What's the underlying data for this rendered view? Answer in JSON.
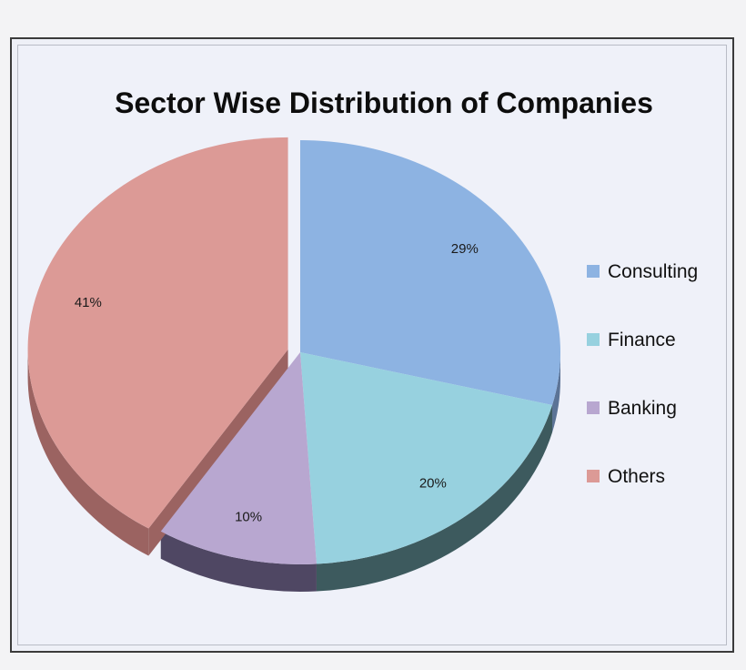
{
  "chart_data": {
    "type": "pie",
    "title": "Sector Wise Distribution of Companies",
    "legend_position": "right",
    "three_d": true,
    "slices": [
      {
        "label": "Consulting",
        "value": 29,
        "data_label": "29%",
        "color": "#8db3e2",
        "side_color": "#5b7396"
      },
      {
        "label": "Finance",
        "value": 20,
        "data_label": "20%",
        "color": "#97d1df",
        "side_color": "#3d5a5e"
      },
      {
        "label": "Banking",
        "value": 10,
        "data_label": "10%",
        "color": "#b8a7d0",
        "side_color": "#4f4763"
      },
      {
        "label": "Others",
        "value": 41,
        "data_label": "41%",
        "color": "#dc9a96",
        "side_color": "#9b6361",
        "exploded": true
      }
    ]
  }
}
